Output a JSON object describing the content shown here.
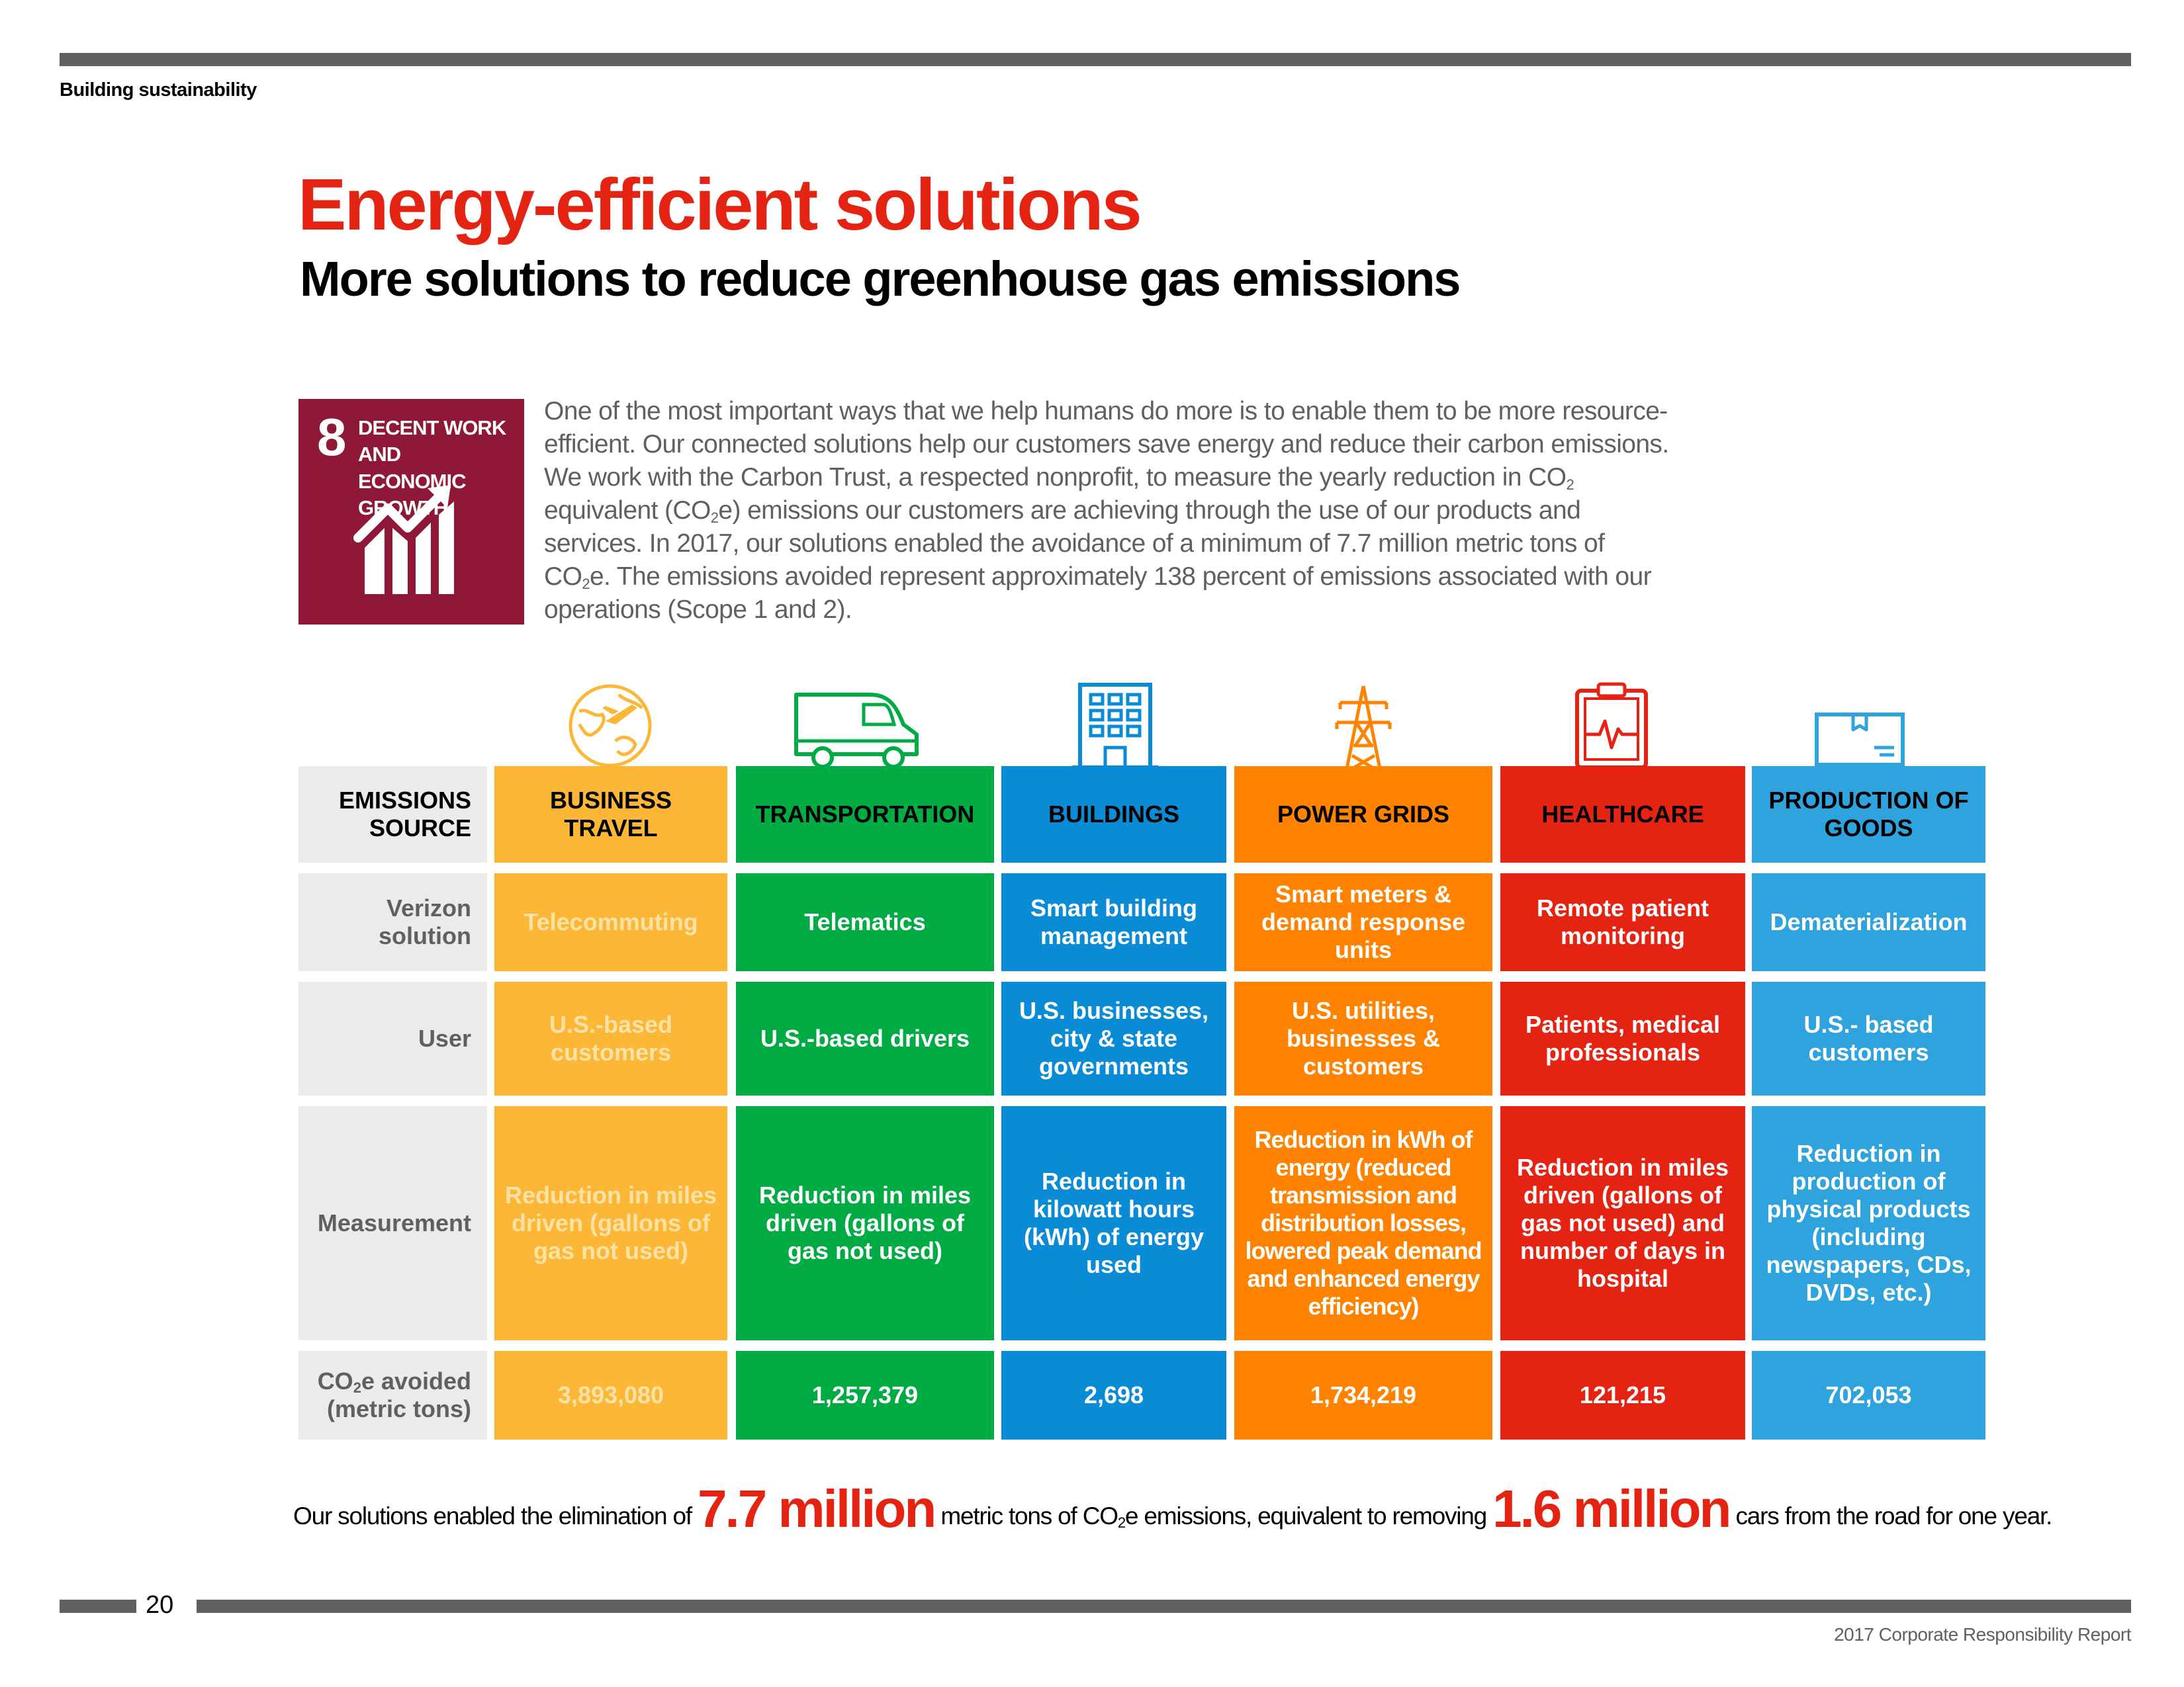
{
  "header": {
    "section": "Building sustainability"
  },
  "title": "Energy-efficient solutions",
  "subtitle": "More solutions to reduce greenhouse gas emissions",
  "sdg": {
    "number": "8",
    "label": "DECENT WORK AND\nECONOMIC GROWTH",
    "color": "#8f1838",
    "icon": "growth-chart-icon"
  },
  "intro": {
    "p1": "One of the most important ways that we help humans do more is to enable them to be more resource-efficient. Our connected solutions help our customers save energy and reduce their carbon emissions. We work with the Carbon Trust, a respected nonprofit, to measure the yearly reduction in CO",
    "sub1": "2",
    "p2": " equivalent (CO",
    "sub2": "2",
    "p3": "e) emissions our customers are achieving through the use of our products and services. In 2017, our solutions enabled the avoidance of a minimum of 7.7 million metric tons of CO",
    "sub3": "2",
    "p4": "e. The emissions avoided represent approximately 138 percent of emissions associated with our operations (Scope 1 and 2)."
  },
  "table": {
    "header_label": "EMISSIONS SOURCE",
    "row_labels": {
      "solution": "Verizon solution",
      "user": "User",
      "measurement": "Measurement",
      "co2_pre": "CO",
      "co2_sub": "2",
      "co2_post": "e avoided (metric tons)"
    },
    "columns": [
      {
        "header": "BUSINESS TRAVEL",
        "color": "#fcb737",
        "icon": "globe-airplane-icon",
        "solution": "Telecommuting",
        "user": "U.S.-based customers",
        "measurement": "Reduction in miles driven (gallons of gas not used)",
        "co2": "3,893,080"
      },
      {
        "header": "TRANSPORTATION",
        "color": "#00ab44",
        "icon": "delivery-van-icon",
        "solution": "Telematics",
        "user": "U.S.-based drivers",
        "measurement": "Reduction in miles driven (gallons of gas not used)",
        "co2": "1,257,379"
      },
      {
        "header": "BUILDINGS",
        "color": "#0a8bd6",
        "icon": "office-building-icon",
        "solution": "Smart building management",
        "user": "U.S. businesses, city & state governments",
        "measurement": "Reduction in kilowatt hours (kWh) of energy used",
        "co2": "2,698"
      },
      {
        "header": "POWER GRIDS",
        "color": "#ff8300",
        "icon": "power-tower-icon",
        "solution": "Smart meters & demand response units",
        "user": "U.S. utilities, businesses & customers",
        "measurement": "Reduction in kWh of energy (reduced transmission and distribution losses, lowered peak demand and enhanced energy efficiency)",
        "co2": "1,734,219"
      },
      {
        "header": "HEALTHCARE",
        "color": "#e42312",
        "icon": "clipboard-heartbeat-icon",
        "solution": "Remote patient monitoring",
        "user": "Patients, medical professionals",
        "measurement": "Reduction in miles driven (gallons of gas not used) and number of days in hospital",
        "co2": "121,215"
      },
      {
        "header": "PRODUCTION OF GOODS",
        "color": "#2ea3dd",
        "icon": "package-box-icon",
        "solution": "Dematerialization",
        "user": "U.S.- based customers",
        "measurement": "Reduction in production of physical products (including newspapers, CDs, DVDs, etc.)",
        "co2": "702,053"
      }
    ]
  },
  "summary": {
    "pre": "Our solutions enabled the elimination of ",
    "big1": "7.7 million",
    "mid1": " metric tons of CO",
    "sub": "2",
    "mid2": "e emissions, equivalent to removing ",
    "big2": "1.6 million",
    "post": " cars from the road for one year."
  },
  "footer": {
    "page": "20",
    "report": "2017 Corporate Responsibility Report"
  }
}
